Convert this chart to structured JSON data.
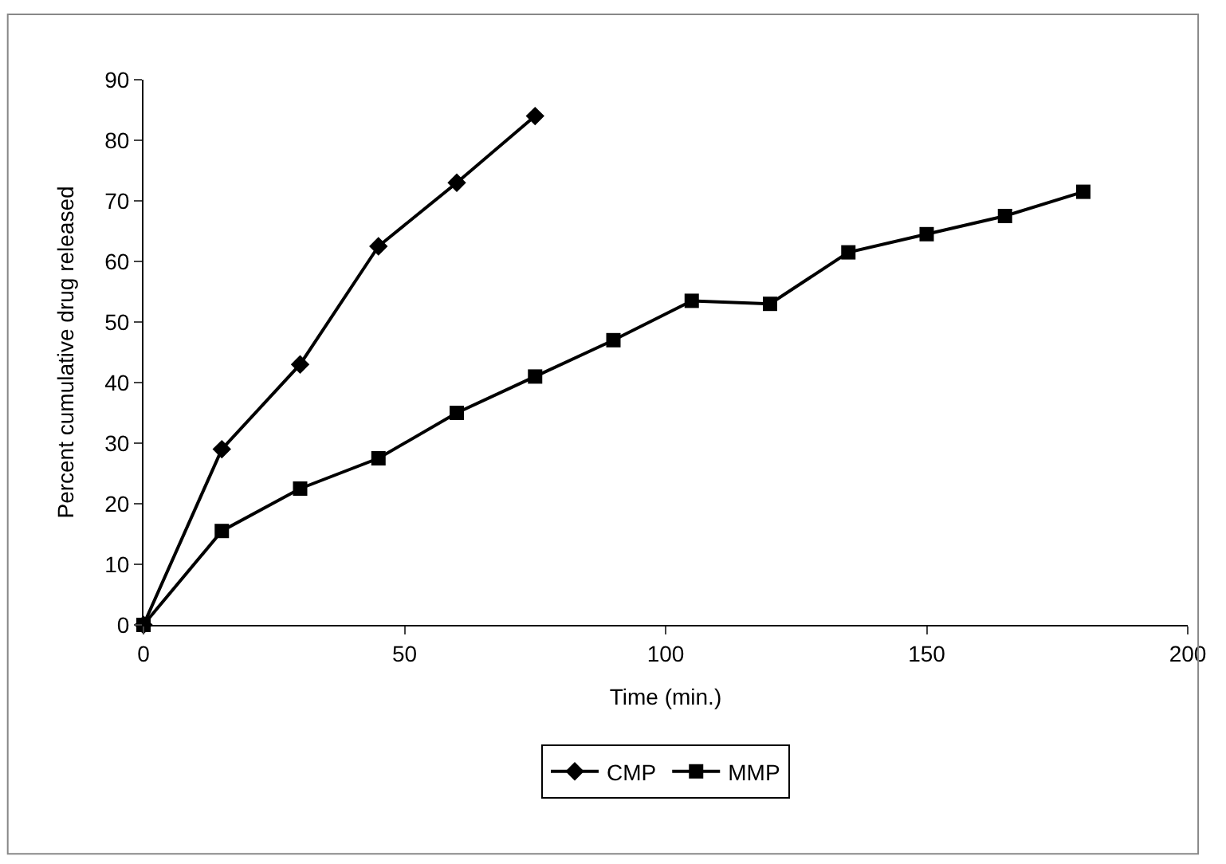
{
  "chart_data": {
    "type": "line",
    "xlabel": "Time (min.)",
    "ylabel": "Percent cumulative drug released",
    "xlim": [
      0,
      200
    ],
    "xticks": [
      0,
      50,
      100,
      150,
      200
    ],
    "ylim": [
      0,
      90
    ],
    "yticks": [
      0,
      10,
      20,
      30,
      40,
      50,
      60,
      70,
      80,
      90
    ],
    "legend": "bottom",
    "line_style": "solid",
    "series": [
      {
        "name": "CMP",
        "color": "#000000",
        "marker": "diamond",
        "x": [
          0,
          15,
          30,
          45,
          60,
          75
        ],
        "values": [
          0,
          29,
          43,
          62.5,
          73,
          84
        ]
      },
      {
        "name": "MMP",
        "color": "#000000",
        "marker": "square",
        "x": [
          0,
          15,
          30,
          45,
          60,
          75,
          90,
          105,
          120,
          135,
          150,
          165,
          180
        ],
        "values": [
          0,
          15.5,
          22.5,
          27.5,
          35,
          41,
          47,
          53.5,
          53,
          61.5,
          64.5,
          67.5,
          71.5
        ]
      }
    ]
  }
}
